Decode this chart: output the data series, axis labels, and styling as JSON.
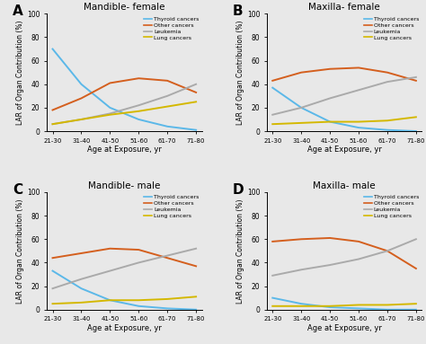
{
  "x_labels": [
    "21-30",
    "31-40",
    "41-50",
    "51-60",
    "61-70",
    "71-80"
  ],
  "x_vals": [
    0,
    1,
    2,
    3,
    4,
    5
  ],
  "panels": [
    {
      "label": "A",
      "title": "Mandible- female",
      "thyroid": [
        70,
        40,
        20,
        10,
        4,
        1
      ],
      "other": [
        18,
        28,
        41,
        45,
        43,
        33
      ],
      "leukemia": [
        6,
        10,
        15,
        22,
        30,
        40
      ],
      "lung": [
        6,
        10,
        14,
        17,
        21,
        25
      ]
    },
    {
      "label": "B",
      "title": "Maxilla- female",
      "thyroid": [
        37,
        20,
        8,
        3,
        1,
        0
      ],
      "other": [
        43,
        50,
        53,
        54,
        50,
        43
      ],
      "leukemia": [
        14,
        20,
        28,
        35,
        42,
        46
      ],
      "lung": [
        6,
        7,
        8,
        8,
        9,
        12
      ]
    },
    {
      "label": "C",
      "title": "Mandible- male",
      "thyroid": [
        33,
        18,
        8,
        3,
        1,
        0
      ],
      "other": [
        44,
        48,
        52,
        51,
        44,
        37
      ],
      "leukemia": [
        18,
        26,
        33,
        40,
        46,
        52
      ],
      "lung": [
        5,
        6,
        8,
        8,
        9,
        11
      ]
    },
    {
      "label": "D",
      "title": "Maxilla- male",
      "thyroid": [
        10,
        5,
        2,
        1,
        0,
        0
      ],
      "other": [
        58,
        60,
        61,
        58,
        50,
        35
      ],
      "leukemia": [
        29,
        34,
        38,
        43,
        50,
        60
      ],
      "lung": [
        3,
        3,
        3,
        4,
        4,
        5
      ]
    }
  ],
  "colors": {
    "thyroid": "#5bb8e8",
    "other": "#d45f1e",
    "leukemia": "#aaaaaa",
    "lung": "#d4b800"
  },
  "legend_labels": [
    "Thyroid cancers",
    "Other cancers",
    "Leukemia",
    "Lung cancers"
  ],
  "ylabel": "LAR of Organ Contribution (%)",
  "xlabel": "Age at Exposure, yr",
  "ylim": [
    0,
    100
  ],
  "yticks": [
    0,
    20,
    40,
    60,
    80,
    100
  ],
  "bg_color": "#e8e8e8",
  "figsize": [
    4.74,
    3.83
  ],
  "dpi": 100
}
